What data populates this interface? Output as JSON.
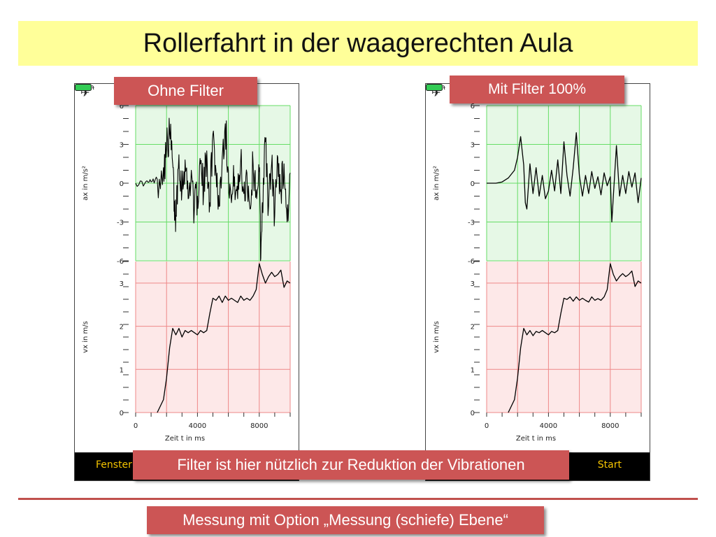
{
  "title": "Rollerfahrt in der waagerechten Aula",
  "labels": {
    "left": "Ohne Filter",
    "right": "Mit Filter 100%",
    "middle": "Filter ist hier nützlich zur Reduktion der Vibrationen",
    "bottom": "Messung mit Option „Messung (schiefe) Ebene“"
  },
  "phone": {
    "plane_icon": "airplane-icon",
    "battery_icon": "battery-icon",
    "fenster_label": "Fenster",
    "start_label": "Start"
  },
  "colors": {
    "title_bg": "#ffff99",
    "callout_bg": "#cc5555",
    "accel_panel": "#e6f8e6",
    "velocity_panel": "#fde8e8",
    "accel_grid": "#66dd66",
    "velocity_grid": "#ee8888",
    "accent_text": "#f5c400"
  },
  "chart_data": [
    {
      "type": "line",
      "panel": "Ohne Filter",
      "xlabel": "Zeit t in ms",
      "xlim": [
        0,
        10000
      ],
      "xticks": [
        0,
        4000,
        8000
      ],
      "subplots": [
        {
          "ylabel": "ax in m/s²",
          "ylim": [
            -6,
            6
          ],
          "yticks": [
            6,
            3,
            0,
            -3,
            -6
          ],
          "grid": true,
          "noisy": true,
          "series": [
            {
              "x": [
                0,
                600,
                1000,
                1400,
                1800,
                2000,
                2200,
                2400,
                2500,
                2600,
                2800,
                3000,
                3200,
                3400,
                3600,
                3800,
                4000,
                4200,
                4400,
                4600,
                4800,
                5000,
                5200,
                5400,
                5600,
                5800,
                6000,
                6200,
                6400,
                6600,
                6800,
                7000,
                7200,
                7400,
                7600,
                7800,
                8000,
                8100,
                8200,
                8400,
                8600,
                8800,
                9000,
                9200,
                9400,
                9600,
                9800,
                10000
              ],
              "y": [
                0,
                0,
                0.1,
                0.3,
                1.2,
                2.6,
                3.9,
                1.5,
                -1.8,
                -2.5,
                2.2,
                -0.5,
                1.8,
                -1.2,
                1.0,
                -2.0,
                -1.0,
                1.5,
                -0.8,
                2.5,
                -1.5,
                3.8,
                1.0,
                -1.8,
                2.0,
                4.6,
                1.0,
                -1.5,
                0.5,
                -1.2,
                1.8,
                -0.8,
                0.8,
                -2.0,
                1.5,
                -0.5,
                0.9,
                -5.8,
                -1.5,
                3.2,
                -1.8,
                1.5,
                -2.5,
                2.0,
                -0.5,
                1.5,
                -3.0,
                0.8
              ]
            }
          ]
        },
        {
          "ylabel": "vx in m/s",
          "ylim": [
            0,
            3.5
          ],
          "yticks": [
            3,
            2,
            1,
            0
          ],
          "grid": true,
          "series": [
            {
              "x": [
                1400,
                1800,
                2000,
                2200,
                2400,
                2600,
                2800,
                3000,
                3200,
                3400,
                3600,
                3800,
                4000,
                4200,
                4400,
                4600,
                4800,
                5000,
                5200,
                5400,
                5600,
                5800,
                6000,
                6200,
                6400,
                6600,
                6800,
                7000,
                7200,
                7400,
                7600,
                7800,
                8000,
                8200,
                8400,
                8600,
                8800,
                9000,
                9200,
                9400,
                9600,
                9800,
                10000
              ],
              "y": [
                0,
                0.3,
                0.8,
                1.5,
                1.95,
                1.8,
                1.95,
                1.75,
                1.9,
                1.85,
                1.9,
                1.85,
                1.8,
                1.9,
                1.85,
                1.9,
                2.3,
                2.65,
                2.6,
                2.7,
                2.55,
                2.7,
                2.6,
                2.65,
                2.6,
                2.55,
                2.7,
                2.6,
                2.65,
                2.6,
                2.7,
                2.85,
                3.45,
                3.2,
                3.0,
                3.15,
                3.25,
                3.15,
                3.2,
                3.3,
                2.9,
                3.05,
                3.0
              ]
            }
          ]
        }
      ]
    },
    {
      "type": "line",
      "panel": "Mit Filter 100%",
      "xlabel": "Zeit t in ms",
      "xlim": [
        0,
        10000
      ],
      "xticks": [
        0,
        4000,
        8000
      ],
      "subplots": [
        {
          "ylabel": "ax in m/s²",
          "ylim": [
            -6,
            6
          ],
          "yticks": [
            6,
            3,
            0,
            -3,
            -6
          ],
          "grid": true,
          "series": [
            {
              "x": [
                0,
                600,
                1000,
                1400,
                1800,
                2000,
                2200,
                2400,
                2500,
                2600,
                2800,
                3000,
                3200,
                3400,
                3600,
                3800,
                4000,
                4200,
                4400,
                4600,
                4800,
                5000,
                5200,
                5400,
                5600,
                5800,
                6000,
                6200,
                6400,
                6600,
                6800,
                7000,
                7200,
                7400,
                7600,
                7800,
                8000,
                8100,
                8200,
                8400,
                8600,
                8800,
                9000,
                9200,
                9400,
                9600,
                9800,
                10000
              ],
              "y": [
                0,
                0,
                0.1,
                0.4,
                1.0,
                2.0,
                3.6,
                1.4,
                -1.5,
                -2.0,
                1.5,
                -0.8,
                1.2,
                -1.0,
                0.6,
                -1.2,
                -0.6,
                1.0,
                -0.6,
                1.8,
                -0.8,
                3.2,
                0.6,
                -1.0,
                1.2,
                3.9,
                0.6,
                -1.0,
                0.6,
                -0.8,
                0.9,
                -0.4,
                0.5,
                -0.9,
                0.8,
                -0.2,
                0.5,
                -3.0,
                -1.0,
                2.9,
                -1.0,
                0.6,
                -0.8,
                0.9,
                -0.3,
                0.8,
                -1.5,
                0.4
              ]
            }
          ]
        },
        {
          "ylabel": "vx in m/s",
          "ylim": [
            0,
            3.5
          ],
          "yticks": [
            3,
            2,
            1,
            0
          ],
          "grid": true,
          "series": [
            {
              "x": [
                1400,
                1800,
                2000,
                2200,
                2400,
                2600,
                2800,
                3000,
                3200,
                3400,
                3600,
                3800,
                4000,
                4200,
                4400,
                4600,
                4800,
                5000,
                5200,
                5400,
                5600,
                5800,
                6000,
                6200,
                6400,
                6600,
                6800,
                7000,
                7200,
                7400,
                7600,
                7800,
                8000,
                8200,
                8400,
                8600,
                8800,
                9000,
                9200,
                9400,
                9600,
                9800,
                10000
              ],
              "y": [
                0,
                0.3,
                0.8,
                1.5,
                1.95,
                1.8,
                1.9,
                1.78,
                1.88,
                1.85,
                1.9,
                1.85,
                1.8,
                1.88,
                1.85,
                1.9,
                2.3,
                2.65,
                2.62,
                2.68,
                2.58,
                2.68,
                2.6,
                2.65,
                2.6,
                2.56,
                2.68,
                2.6,
                2.64,
                2.6,
                2.68,
                2.85,
                3.45,
                3.2,
                3.05,
                3.15,
                3.22,
                3.15,
                3.2,
                3.28,
                2.92,
                3.05,
                3.0
              ]
            }
          ]
        }
      ]
    }
  ]
}
